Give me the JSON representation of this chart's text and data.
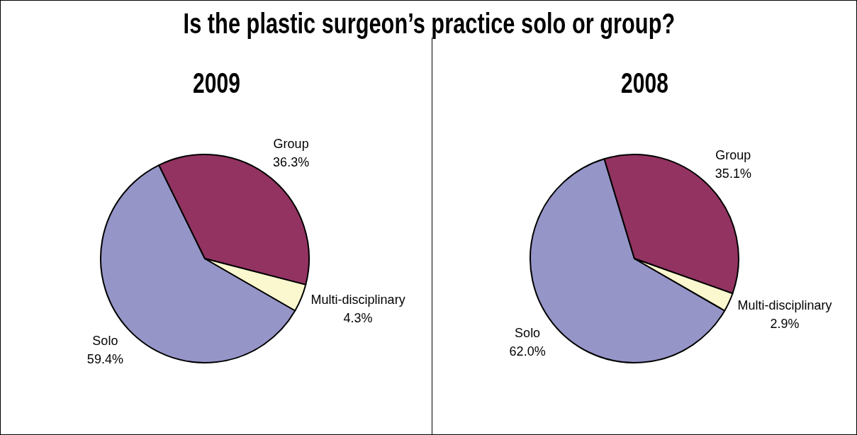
{
  "chart_data": [
    {
      "type": "pie",
      "title": "Is the plastic surgeon’s practice solo or group?",
      "subtitle": "2009",
      "categories": [
        "Solo",
        "Group",
        "Multi-disciplinary"
      ],
      "values": [
        59.4,
        36.3,
        4.3
      ],
      "colors": [
        "#9595c8",
        "#933362",
        "#fbf8cf"
      ],
      "value_labels": [
        "59.4%",
        "36.3%",
        "4.3%"
      ]
    },
    {
      "type": "pie",
      "title": "2008",
      "categories": [
        "Solo",
        "Group",
        "Multi-disciplinary"
      ],
      "values": [
        62.0,
        35.1,
        2.9
      ],
      "colors": [
        "#9595c8",
        "#933362",
        "#fbf8cf"
      ],
      "value_labels": [
        "62.0%",
        "35.1%",
        "2.9%"
      ]
    }
  ]
}
